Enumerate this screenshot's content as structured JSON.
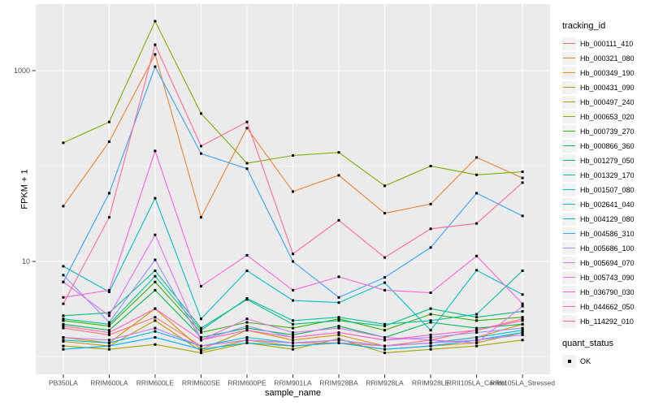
{
  "figure": {
    "background": "#FFFFFF",
    "panel_bg": "#EBEBEB",
    "grid_major_color": "#FFFFFF",
    "grid_minor_color": "#F5F5F5",
    "axis_text_color": "#4D4D4D",
    "axis_title_color": "#000000",
    "tick_color": "#333333",
    "point_color": "#000000",
    "legend_key_bg": "#F2F2F2"
  },
  "chart_data": {
    "type": "line",
    "title": "",
    "xlabel": "sample_name",
    "ylabel": "FPKM + 1",
    "y_scale": "log10",
    "ylim": [
      0.77,
      4950
    ],
    "y_major_ticks": [
      10,
      1000
    ],
    "y_major_tick_labels": [
      "10",
      "1000"
    ],
    "y_minor_ticks": [
      1,
      100
    ],
    "grid": true,
    "legend_position": "right",
    "point_shape": "square",
    "categories": [
      "PB350LA",
      "RRIM600LA",
      "RRIM600LE",
      "RRIM600SE",
      "RRIM600PE",
      "RRIM901LA",
      "RRIM928BA",
      "RRIM928LA",
      "RRIM928LE",
      "RRII105LA_Control",
      "RRII105LA_Stressed"
    ],
    "legend": {
      "title": "tracking_id"
    },
    "legend2": {
      "title": "quant_status",
      "items": [
        "OK"
      ]
    },
    "series": [
      {
        "name": "Hb_000111_410",
        "color": "#F8766D",
        "values": [
          2.0,
          1.7,
          2.6,
          1.3,
          1.5,
          1.4,
          1.4,
          1.3,
          1.5,
          1.9,
          2.5
        ]
      },
      {
        "name": "Hb_000321_080",
        "color": "#EA8331",
        "values": [
          38,
          180,
          1480,
          29,
          250,
          54,
          80,
          32,
          40,
          123,
          75
        ]
      },
      {
        "name": "Hb_000349_190",
        "color": "#D89000",
        "values": [
          1.6,
          1.4,
          3.2,
          1.2,
          1.9,
          1.5,
          1.7,
          1.3,
          1.4,
          1.6,
          2.2
        ]
      },
      {
        "name": "Hb_000431_090",
        "color": "#C09B00",
        "values": [
          1.45,
          1.3,
          2.4,
          1.15,
          1.5,
          1.3,
          1.4,
          1.2,
          1.3,
          1.4,
          1.8
        ]
      },
      {
        "name": "Hb_000497_240",
        "color": "#A3A500",
        "values": [
          1.3,
          1.2,
          1.35,
          1.1,
          1.4,
          1.2,
          1.55,
          1.1,
          1.2,
          1.3,
          1.5
        ]
      },
      {
        "name": "Hb_000653_020",
        "color": "#7CAE00",
        "values": [
          175,
          290,
          3300,
          355,
          107,
          129,
          139,
          62,
          100,
          81,
          87
        ]
      },
      {
        "name": "Hb_000739_270",
        "color": "#39B600",
        "values": [
          2.4,
          2.1,
          6.1,
          1.8,
          2.3,
          2.0,
          2.5,
          1.9,
          2.8,
          2.4,
          2.6
        ]
      },
      {
        "name": "Hb_000866_360",
        "color": "#00BB4E",
        "values": [
          2.2,
          1.9,
          5.0,
          1.6,
          2.0,
          1.7,
          2.1,
          1.6,
          2.3,
          2.0,
          2.2
        ]
      },
      {
        "name": "Hb_001279_050",
        "color": "#00BF7D",
        "values": [
          2.7,
          2.9,
          8.0,
          2.0,
          4.0,
          2.2,
          2.4,
          2.1,
          3.2,
          2.6,
          3.0
        ]
      },
      {
        "name": "Hb_001329_170",
        "color": "#00C1A3",
        "values": [
          2.5,
          2.2,
          7.0,
          1.9,
          4.1,
          2.4,
          2.6,
          2.2,
          2.4,
          2.8,
          8.0
        ]
      },
      {
        "name": "Hb_001507_080",
        "color": "#00BFC4",
        "values": [
          8.9,
          4.8,
          46,
          2.5,
          8.0,
          3.9,
          3.7,
          6.0,
          1.9,
          8.1,
          4.5
        ]
      },
      {
        "name": "Hb_002641_040",
        "color": "#00BAE0",
        "values": [
          1.5,
          1.4,
          1.85,
          1.3,
          1.6,
          1.4,
          1.5,
          1.3,
          1.4,
          1.6,
          1.9
        ]
      },
      {
        "name": "Hb_004129_080",
        "color": "#00B0F6",
        "values": [
          1.2,
          1.3,
          1.6,
          1.2,
          1.4,
          1.3,
          1.4,
          1.2,
          1.3,
          1.5,
          1.8
        ]
      },
      {
        "name": "Hb_004586_310",
        "color": "#35A2FF",
        "values": [
          6.1,
          52,
          1100,
          135,
          94,
          10,
          4.2,
          6.8,
          14,
          52,
          30
        ]
      },
      {
        "name": "Hb_005686_100",
        "color": "#9590FF",
        "values": [
          7.2,
          2.3,
          10.4,
          1.5,
          2.1,
          1.6,
          1.8,
          1.5,
          1.6,
          1.8,
          2.0
        ]
      },
      {
        "name": "Hb_005694_070",
        "color": "#C77CFF",
        "values": [
          1.6,
          1.5,
          2.0,
          1.3,
          1.5,
          1.4,
          1.5,
          1.3,
          1.4,
          1.5,
          1.7
        ]
      },
      {
        "name": "Hb_005743_090",
        "color": "#E76BF3",
        "values": [
          6.1,
          2.7,
          19,
          1.5,
          2.5,
          1.8,
          2.0,
          1.6,
          1.5,
          1.4,
          3.4
        ]
      },
      {
        "name": "Hb_036790_030",
        "color": "#FA62DB",
        "values": [
          4.2,
          5.0,
          144,
          5.5,
          11.6,
          5.0,
          6.9,
          5.0,
          4.7,
          11.4,
          3.6
        ]
      },
      {
        "name": "Hb_044662_050",
        "color": "#FF62BC",
        "values": [
          2.1,
          1.8,
          3.2,
          1.5,
          1.9,
          1.6,
          1.8,
          1.5,
          1.7,
          1.9,
          2.4
        ]
      },
      {
        "name": "Hb_114292_010",
        "color": "#FF6A98",
        "values": [
          3.6,
          29,
          1870,
          162,
          290,
          12,
          27,
          11,
          22,
          25,
          67
        ]
      }
    ]
  }
}
